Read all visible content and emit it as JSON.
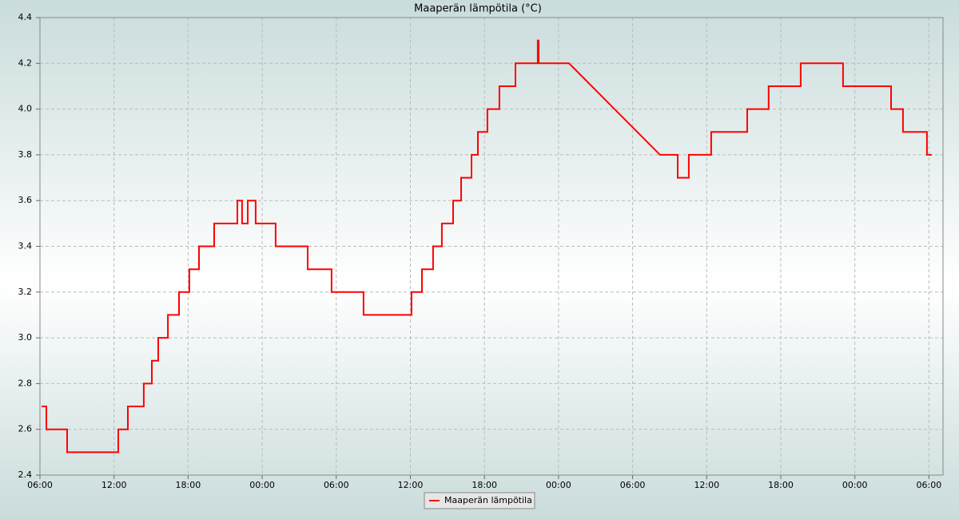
{
  "chart_data": {
    "type": "line",
    "title": "Maaperän lämpötila (°C)",
    "series": [
      {
        "name": "Maaperän lämpötila",
        "color": "#ff0000",
        "x": [
          0.13,
          0.52,
          0.52,
          2.2,
          2.2,
          6.34,
          6.34,
          7.12,
          7.12,
          8.41,
          8.41,
          9.06,
          9.06,
          9.58,
          9.58,
          10.36,
          10.36,
          11.26,
          11.26,
          12.1,
          12.1,
          12.88,
          12.88,
          14.11,
          14.11,
          15.99,
          15.99,
          16.37,
          16.37,
          16.83,
          16.83,
          17.47,
          17.47,
          19.09,
          19.09,
          21.68,
          21.68,
          23.62,
          23.62,
          26.21,
          26.21,
          30.09,
          30.09,
          30.94,
          30.94,
          31.84,
          31.84,
          32.55,
          32.55,
          33.46,
          33.46,
          34.11,
          34.11,
          34.95,
          34.95,
          35.47,
          35.47,
          36.24,
          36.24,
          37.21,
          37.21,
          38.51,
          38.51,
          40.32,
          40.32,
          40.39,
          40.39,
          42.85,
          50.22,
          51.65,
          51.65,
          52.55,
          52.55,
          54.36,
          54.36,
          57.28,
          57.28,
          59.02,
          59.02,
          61.61,
          61.61,
          65.04,
          65.04,
          68.93,
          68.93,
          69.9,
          69.9,
          71.84,
          71.84,
          72.23
        ],
        "values": [
          2.7,
          2.7,
          2.6,
          2.6,
          2.5,
          2.5,
          2.6,
          2.6,
          2.7,
          2.7,
          2.8,
          2.8,
          2.9,
          2.9,
          3.0,
          3.0,
          3.1,
          3.1,
          3.2,
          3.2,
          3.3,
          3.3,
          3.4,
          3.4,
          3.5,
          3.5,
          3.6,
          3.6,
          3.5,
          3.5,
          3.6,
          3.6,
          3.5,
          3.5,
          3.4,
          3.4,
          3.3,
          3.3,
          3.2,
          3.2,
          3.1,
          3.1,
          3.2,
          3.2,
          3.3,
          3.3,
          3.4,
          3.4,
          3.5,
          3.5,
          3.6,
          3.6,
          3.7,
          3.7,
          3.8,
          3.8,
          3.9,
          3.9,
          4.0,
          4.0,
          4.1,
          4.1,
          4.2,
          4.2,
          4.3,
          4.3,
          4.2,
          4.2,
          3.8,
          3.8,
          3.7,
          3.7,
          3.8,
          3.8,
          3.9,
          3.9,
          4.0,
          4.0,
          4.1,
          4.1,
          4.2,
          4.2,
          4.1,
          4.1,
          4.0,
          4.0,
          3.9,
          3.9,
          3.8,
          3.8
        ]
      }
    ],
    "xlim": [
      0,
      73.14
    ],
    "xticks": [
      {
        "value": 0,
        "label": "06:00"
      },
      {
        "value": 6,
        "label": "12:00"
      },
      {
        "value": 12,
        "label": "18:00"
      },
      {
        "value": 18,
        "label": "00:00"
      },
      {
        "value": 24,
        "label": "06:00"
      },
      {
        "value": 30,
        "label": "12:00"
      },
      {
        "value": 36,
        "label": "18:00"
      },
      {
        "value": 42,
        "label": "00:00"
      },
      {
        "value": 48,
        "label": "06:00"
      },
      {
        "value": 54,
        "label": "12:00"
      },
      {
        "value": 60,
        "label": "18:00"
      },
      {
        "value": 66,
        "label": "00:00"
      },
      {
        "value": 72,
        "label": "06:00"
      }
    ],
    "ylim": [
      2.4,
      4.4
    ],
    "yticks": [
      2.4,
      2.6,
      2.8,
      {
        "value": 3,
        "label": "3.0"
      },
      3.2,
      3.4,
      3.6,
      3.8,
      {
        "value": 4,
        "label": "4.0"
      },
      4.2,
      4.4
    ],
    "grid": true,
    "legend": "bottom"
  }
}
